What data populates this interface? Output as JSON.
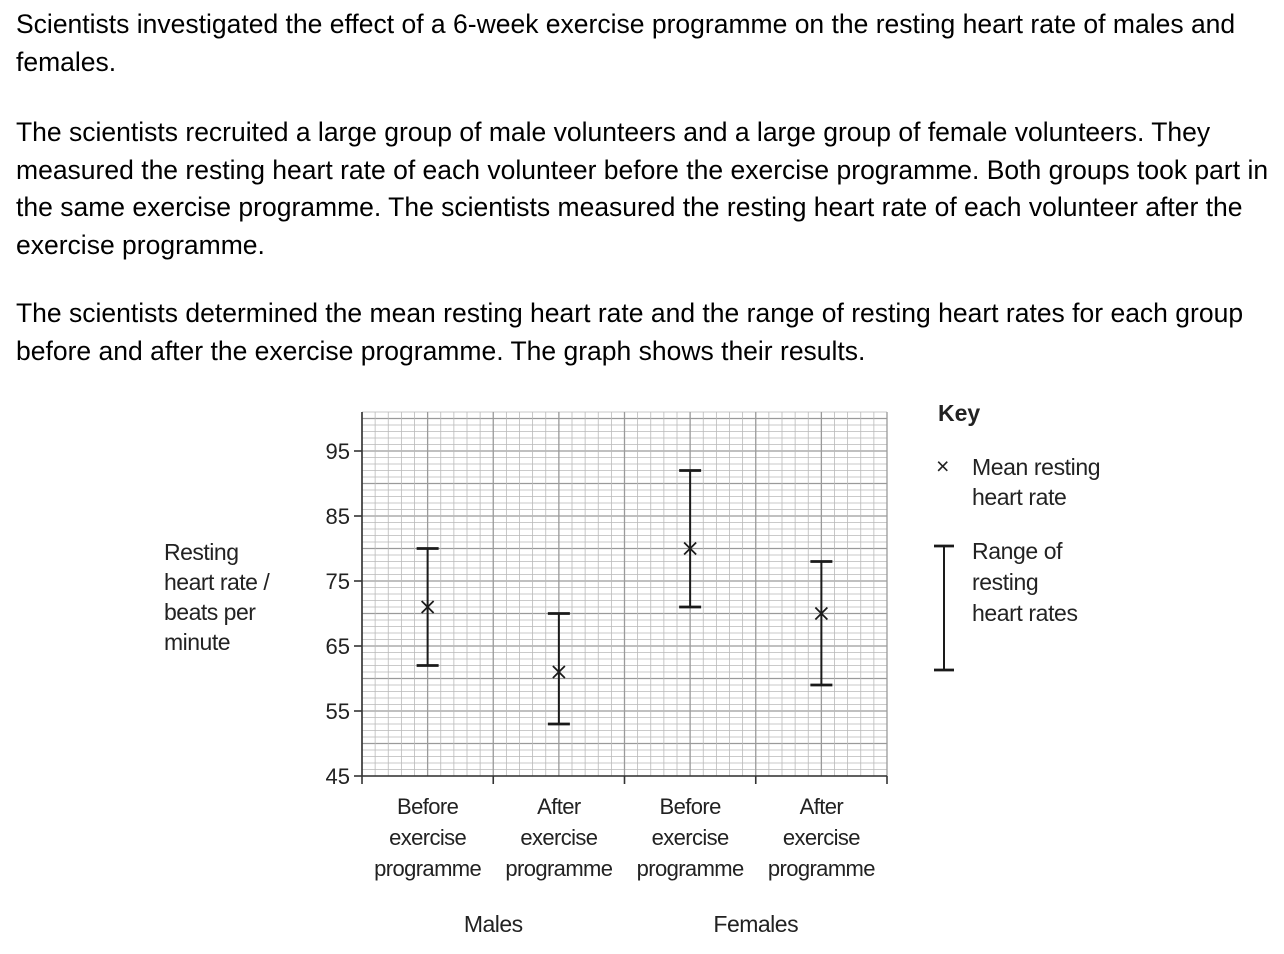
{
  "question": {
    "paragraph1": "Scientists investigated the effect of a 6-week exercise programme on the resting heart rate of males and females.",
    "paragraph2": "The scientists recruited a large group of male volunteers and a large group of female volunteers. They measured the resting heart rate of each volunteer before the exercise programme. Both groups took part in the same exercise programme. The scientists measured the resting heart rate of each volunteer after the exercise programme.",
    "paragraph3": "The scientists determined the mean resting heart rate and the range of resting heart rates for each group before and after the exercise programme. The graph shows their results."
  },
  "chart_data": {
    "type": "scatter",
    "ylabel": [
      "Resting",
      "heart rate /",
      "beats per",
      "minute"
    ],
    "ylim": [
      45,
      101
    ],
    "yticks": [
      45,
      55,
      65,
      75,
      85,
      95
    ],
    "grid": true,
    "categories": [
      [
        "Before",
        "exercise",
        "programme"
      ],
      [
        "After",
        "exercise",
        "programme"
      ],
      [
        "Before",
        "exercise",
        "programme"
      ],
      [
        "After",
        "exercise",
        "programme"
      ]
    ],
    "groups": [
      {
        "name": "Males",
        "categories": [
          0,
          1
        ]
      },
      {
        "name": "Females",
        "categories": [
          2,
          3
        ]
      }
    ],
    "series": [
      {
        "name": "Mean resting heart rate",
        "marker": "×",
        "values": [
          71,
          61,
          80,
          70
        ]
      },
      {
        "name": "Range of resting heart rates",
        "marker": "range bar",
        "min": [
          62,
          53,
          71,
          59
        ],
        "max": [
          80,
          70,
          92,
          78
        ]
      }
    ],
    "key": {
      "title": "Key",
      "mean_label": [
        "Mean resting",
        "heart rate"
      ],
      "range_label": [
        "Range of",
        "resting",
        "heart rates"
      ]
    },
    "legend_position": "right"
  }
}
